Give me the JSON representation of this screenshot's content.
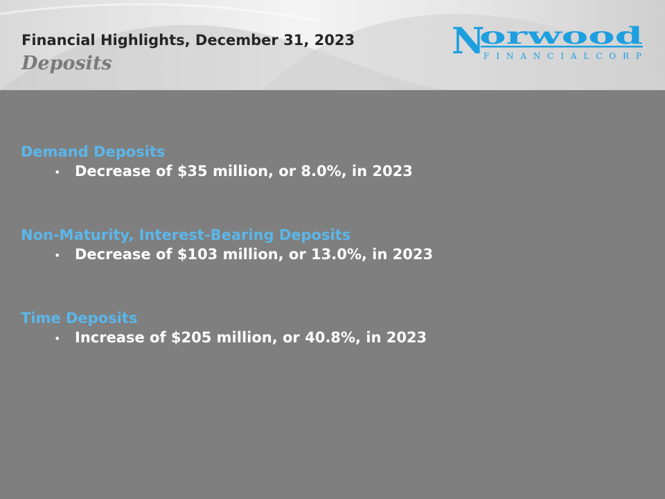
{
  "header": {
    "title": "Financial Highlights, December 31, 2023",
    "subtitle": "Deposits",
    "logo": {
      "word": "Norwood",
      "tagline": "FINANCIAL CORP",
      "color": "#1e9fe0"
    }
  },
  "sections": [
    {
      "heading": "Demand Deposits",
      "bullet": "Decrease of $35 million, or 8.0%, in 2023"
    },
    {
      "heading": "Non-Maturity, Interest-Bearing Deposits",
      "bullet": "Decrease of $103 million, or 13.0%, in 2023"
    },
    {
      "heading": "Time Deposits",
      "bullet": "Increase of $205 million, or 40.8%, in 2023"
    }
  ],
  "colors": {
    "background": "#7f7f7f",
    "heading": "#5bb7ea",
    "bullet_text": "#ffffff"
  }
}
